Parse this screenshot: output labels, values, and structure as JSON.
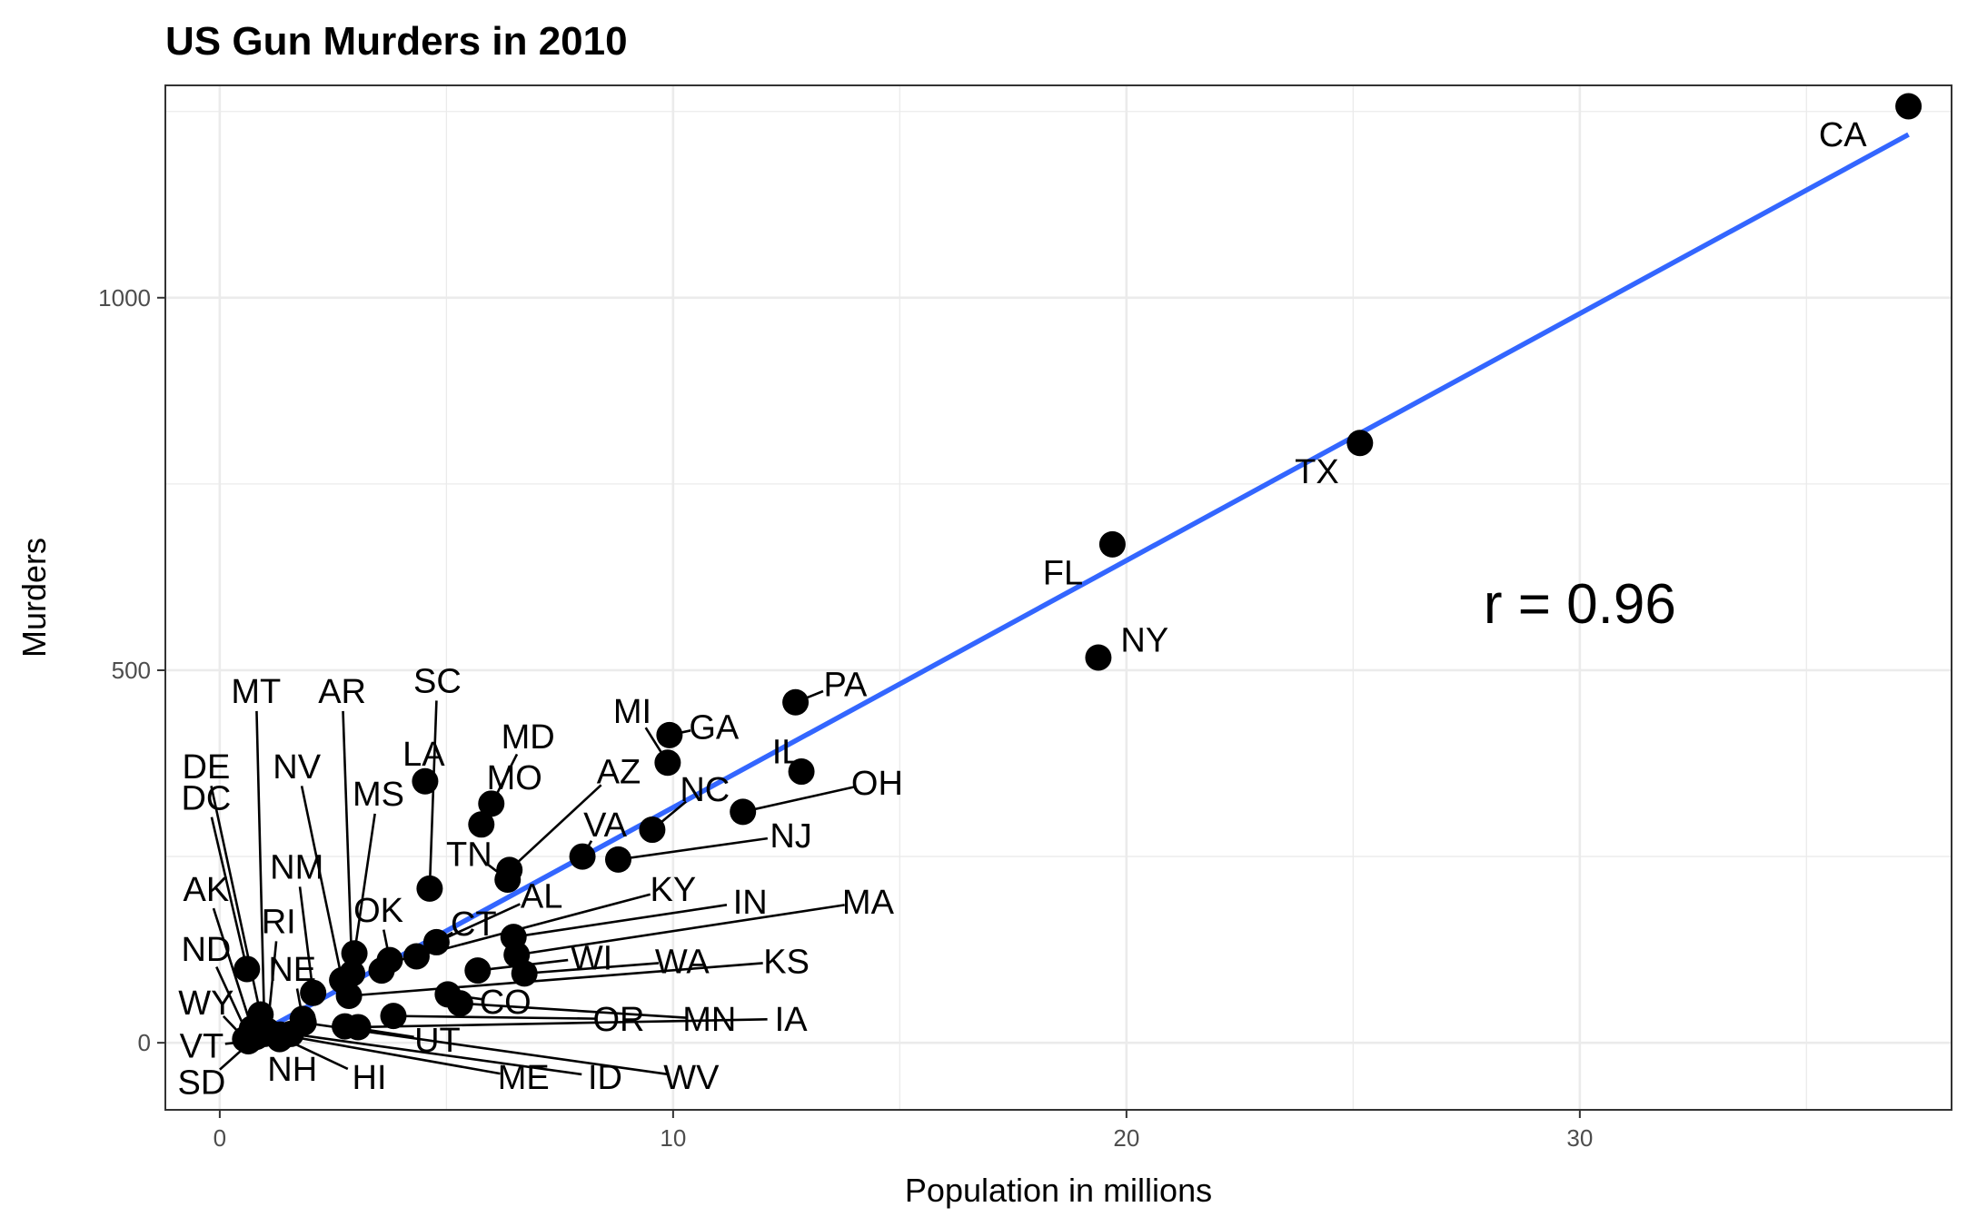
{
  "chart_data": {
    "type": "scatter",
    "title": "US Gun Murders in 2010",
    "xlabel": "Population in millions",
    "ylabel": "Murders",
    "xlim": [
      -1.2,
      38.2
    ],
    "ylim": [
      -90,
      1285
    ],
    "x_ticks": [
      0,
      10,
      20,
      30
    ],
    "x_minor_ticks": [
      5,
      15,
      25,
      35
    ],
    "y_ticks": [
      0,
      500,
      1000
    ],
    "y_minor_ticks": [
      250,
      750,
      1250
    ],
    "x_tick_labels": [
      "0",
      "10",
      "20",
      "30"
    ],
    "y_tick_labels": [
      "0",
      "500",
      "1000"
    ],
    "grid": true,
    "legend": "none",
    "annotation": "r = 0.96",
    "annotation_position": {
      "x": 30,
      "y": 590
    },
    "trend_line": {
      "x": [
        0.56,
        37.25
      ],
      "y": [
        3,
        1219
      ],
      "color": "#3366FF"
    },
    "point_color": "#000000",
    "points": [
      {
        "label": "CA",
        "x": 37.25,
        "y": 1257
      },
      {
        "label": "TX",
        "x": 25.15,
        "y": 805
      },
      {
        "label": "FL",
        "x": 19.69,
        "y": 669
      },
      {
        "label": "NY",
        "x": 19.38,
        "y": 517
      },
      {
        "label": "PA",
        "x": 12.7,
        "y": 457
      },
      {
        "label": "GA",
        "x": 9.92,
        "y": 413
      },
      {
        "label": "IL",
        "x": 12.83,
        "y": 364
      },
      {
        "label": "NC",
        "x": 9.54,
        "y": 286
      },
      {
        "label": "MI",
        "x": 9.88,
        "y": 376
      },
      {
        "label": "OH",
        "x": 11.54,
        "y": 310
      },
      {
        "label": "NJ",
        "x": 8.79,
        "y": 246
      },
      {
        "label": "VA",
        "x": 8.0,
        "y": 250
      },
      {
        "label": "MD",
        "x": 5.77,
        "y": 293
      },
      {
        "label": "MO",
        "x": 5.99,
        "y": 321
      },
      {
        "label": "LA",
        "x": 4.53,
        "y": 351
      },
      {
        "label": "TN",
        "x": 6.35,
        "y": 219
      },
      {
        "label": "AZ",
        "x": 6.39,
        "y": 232
      },
      {
        "label": "SC",
        "x": 4.63,
        "y": 207
      },
      {
        "label": "AL",
        "x": 4.78,
        "y": 135
      },
      {
        "label": "IN",
        "x": 6.48,
        "y": 142
      },
      {
        "label": "MA",
        "x": 6.55,
        "y": 118
      },
      {
        "label": "KY",
        "x": 4.34,
        "y": 116
      },
      {
        "label": "WI",
        "x": 5.69,
        "y": 97
      },
      {
        "label": "WA",
        "x": 6.72,
        "y": 93
      },
      {
        "label": "OK",
        "x": 3.75,
        "y": 111
      },
      {
        "label": "CT",
        "x": 3.57,
        "y": 97
      },
      {
        "label": "MS",
        "x": 2.97,
        "y": 120
      },
      {
        "label": "AR",
        "x": 2.92,
        "y": 93
      },
      {
        "label": "NV",
        "x": 2.7,
        "y": 84
      },
      {
        "label": "KS",
        "x": 2.85,
        "y": 63
      },
      {
        "label": "CO",
        "x": 5.03,
        "y": 65
      },
      {
        "label": "MN",
        "x": 5.3,
        "y": 53
      },
      {
        "label": "OR",
        "x": 3.83,
        "y": 36
      },
      {
        "label": "IA",
        "x": 3.05,
        "y": 21
      },
      {
        "label": "UT",
        "x": 2.76,
        "y": 22
      },
      {
        "label": "NM",
        "x": 2.06,
        "y": 67
      },
      {
        "label": "NE",
        "x": 1.83,
        "y": 32
      },
      {
        "label": "WV",
        "x": 1.85,
        "y": 27
      },
      {
        "label": "ID",
        "x": 1.57,
        "y": 12
      },
      {
        "label": "HI",
        "x": 1.36,
        "y": 7
      },
      {
        "label": "ME",
        "x": 1.33,
        "y": 11
      },
      {
        "label": "NH",
        "x": 1.32,
        "y": 5
      },
      {
        "label": "RI",
        "x": 1.05,
        "y": 16
      },
      {
        "label": "MT",
        "x": 0.99,
        "y": 12
      },
      {
        "label": "DE",
        "x": 0.9,
        "y": 38
      },
      {
        "label": "SD",
        "x": 0.81,
        "y": 8
      },
      {
        "label": "AK",
        "x": 0.71,
        "y": 19
      },
      {
        "label": "ND",
        "x": 0.67,
        "y": 4
      },
      {
        "label": "DC",
        "x": 0.6,
        "y": 99
      },
      {
        "label": "VT",
        "x": 0.63,
        "y": 2
      },
      {
        "label": "WY",
        "x": 0.56,
        "y": 5
      }
    ],
    "labels": [
      {
        "label": "CA",
        "x": 35.8,
        "y": 1219,
        "anchor": "middle",
        "leader": false
      },
      {
        "label": "TX",
        "x": 24.2,
        "y": 767,
        "anchor": "middle",
        "leader": false
      },
      {
        "label": "FL",
        "x": 18.6,
        "y": 631,
        "anchor": "middle",
        "leader": false
      },
      {
        "label": "NY",
        "x": 20.4,
        "y": 541,
        "anchor": "middle",
        "leader": false
      },
      {
        "label": "PA",
        "x": 13.8,
        "y": 481,
        "anchor": "middle",
        "leader": true
      },
      {
        "label": "GA",
        "x": 10.9,
        "y": 424,
        "anchor": "middle",
        "leader": true
      },
      {
        "label": "IL",
        "x": 12.5,
        "y": 391,
        "anchor": "middle",
        "leader": true
      },
      {
        "label": "MI",
        "x": 9.1,
        "y": 445,
        "anchor": "middle",
        "leader": true
      },
      {
        "label": "AZ",
        "x": 8.8,
        "y": 364,
        "anchor": "middle",
        "leader": true
      },
      {
        "label": "NC",
        "x": 10.7,
        "y": 340,
        "anchor": "middle",
        "leader": true
      },
      {
        "label": "OH",
        "x": 14.5,
        "y": 349,
        "anchor": "middle",
        "leader": true
      },
      {
        "label": "NJ",
        "x": 12.6,
        "y": 278,
        "anchor": "middle",
        "leader": true
      },
      {
        "label": "VA",
        "x": 8.5,
        "y": 293,
        "anchor": "middle",
        "leader": true
      },
      {
        "label": "MD",
        "x": 6.8,
        "y": 411,
        "anchor": "middle",
        "leader": true
      },
      {
        "label": "MO",
        "x": 6.5,
        "y": 356,
        "anchor": "middle",
        "leader": true
      },
      {
        "label": "LA",
        "x": 4.5,
        "y": 388,
        "anchor": "middle",
        "leader": true
      },
      {
        "label": "SC",
        "x": 4.8,
        "y": 486,
        "anchor": "middle",
        "leader": true
      },
      {
        "label": "MS",
        "x": 3.5,
        "y": 334,
        "anchor": "middle",
        "leader": true
      },
      {
        "label": "TN",
        "x": 5.5,
        "y": 253,
        "anchor": "middle",
        "leader": true
      },
      {
        "label": "AL",
        "x": 7.1,
        "y": 197,
        "anchor": "middle",
        "leader": true
      },
      {
        "label": "KY",
        "x": 10.0,
        "y": 206,
        "anchor": "middle",
        "leader": true
      },
      {
        "label": "IN",
        "x": 11.7,
        "y": 189,
        "anchor": "middle",
        "leader": true
      },
      {
        "label": "MA",
        "x": 14.3,
        "y": 189,
        "anchor": "middle",
        "leader": true
      },
      {
        "label": "OK",
        "x": 3.5,
        "y": 178,
        "anchor": "middle",
        "leader": true
      },
      {
        "label": "CT",
        "x": 5.6,
        "y": 160,
        "anchor": "middle",
        "leader": true
      },
      {
        "label": "WI",
        "x": 8.2,
        "y": 114,
        "anchor": "middle",
        "leader": true
      },
      {
        "label": "WA",
        "x": 10.2,
        "y": 109,
        "anchor": "middle",
        "leader": true
      },
      {
        "label": "KS",
        "x": 12.5,
        "y": 109,
        "anchor": "middle",
        "leader": true
      },
      {
        "label": "CO",
        "x": 6.3,
        "y": 55,
        "anchor": "middle",
        "leader": true
      },
      {
        "label": "OR",
        "x": 8.8,
        "y": 32,
        "anchor": "middle",
        "leader": true
      },
      {
        "label": "MN",
        "x": 10.8,
        "y": 32,
        "anchor": "middle",
        "leader": true
      },
      {
        "label": "IA",
        "x": 12.6,
        "y": 32,
        "anchor": "middle",
        "leader": true
      },
      {
        "label": "UT",
        "x": 4.8,
        "y": 4,
        "anchor": "middle",
        "leader": true
      },
      {
        "label": "ME",
        "x": 6.7,
        "y": -46,
        "anchor": "middle",
        "leader": true
      },
      {
        "label": "ID",
        "x": 8.5,
        "y": -46,
        "anchor": "middle",
        "leader": true
      },
      {
        "label": "WV",
        "x": 10.4,
        "y": -46,
        "anchor": "middle",
        "leader": true
      },
      {
        "label": "HI",
        "x": 3.3,
        "y": -46,
        "anchor": "middle",
        "leader": true
      },
      {
        "label": "NH",
        "x": 1.6,
        "y": -35,
        "anchor": "middle",
        "leader": true
      },
      {
        "label": "NE",
        "x": 1.6,
        "y": 99,
        "anchor": "middle",
        "leader": true
      },
      {
        "label": "RI",
        "x": 1.3,
        "y": 163,
        "anchor": "middle",
        "leader": true
      },
      {
        "label": "NM",
        "x": 1.7,
        "y": 236,
        "anchor": "middle",
        "leader": true
      },
      {
        "label": "NV",
        "x": 1.7,
        "y": 371,
        "anchor": "middle",
        "leader": true
      },
      {
        "label": "AR",
        "x": 2.7,
        "y": 472,
        "anchor": "middle",
        "leader": true
      },
      {
        "label": "MT",
        "x": 0.8,
        "y": 472,
        "anchor": "middle",
        "leader": true
      },
      {
        "label": "DE",
        "x": -0.3,
        "y": 371,
        "anchor": "middle",
        "leader": true
      },
      {
        "label": "DC",
        "x": -0.3,
        "y": 329,
        "anchor": "middle",
        "leader": true
      },
      {
        "label": "AK",
        "x": -0.3,
        "y": 206,
        "anchor": "middle",
        "leader": true
      },
      {
        "label": "ND",
        "x": -0.3,
        "y": 126,
        "anchor": "middle",
        "leader": true
      },
      {
        "label": "WY",
        "x": -0.3,
        "y": 54,
        "anchor": "middle",
        "leader": true
      },
      {
        "label": "VT",
        "x": -0.4,
        "y": -4,
        "anchor": "middle",
        "leader": true
      },
      {
        "label": "SD",
        "x": -0.4,
        "y": -53,
        "anchor": "middle",
        "leader": true
      }
    ]
  }
}
